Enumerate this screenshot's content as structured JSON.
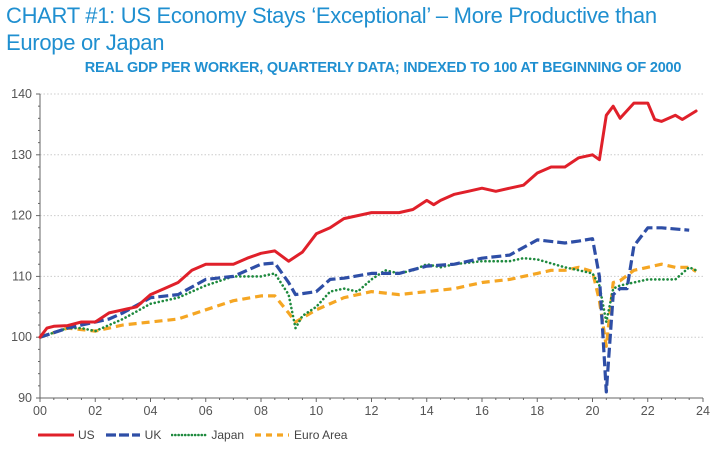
{
  "title": "CHART #1: US Economy Stays ‘Exceptional’ – More Productive than Europe or Japan",
  "subtitle": "REAL GDP PER WORKER, QUARTERLY DATA; INDEXED TO 100 AT BEGINNING OF 2000",
  "chart_data": {
    "type": "line",
    "title": "CHART #1: US Economy Stays ‘Exceptional’ – More Productive than Europe or Japan",
    "subtitle": "REAL GDP PER WORKER, QUARTERLY DATA; INDEXED TO 100 AT BEGINNING OF 2000",
    "xlabel": "",
    "ylabel": "",
    "xlim": [
      2000,
      2024
    ],
    "ylim": [
      90,
      140
    ],
    "x_ticks": [
      2000,
      2002,
      2004,
      2006,
      2008,
      2010,
      2012,
      2014,
      2016,
      2018,
      2020,
      2022,
      2024
    ],
    "x_tick_labels": [
      "00",
      "02",
      "04",
      "06",
      "08",
      "10",
      "12",
      "14",
      "16",
      "18",
      "20",
      "22",
      "24"
    ],
    "y_ticks": [
      90,
      100,
      110,
      120,
      130,
      140
    ],
    "y_tick_labels": [
      "90",
      "100",
      "110",
      "120",
      "130",
      "140"
    ],
    "grid": "horizontal dotted",
    "legend_position": "bottom-left",
    "series": [
      {
        "name": "US",
        "color": "#e0202a",
        "style": "solid",
        "x": [
          2000,
          2000.25,
          2000.5,
          2001,
          2001.5,
          2002,
          2002.5,
          2003,
          2003.5,
          2004,
          2004.5,
          2005,
          2005.5,
          2006,
          2006.5,
          2007,
          2007.5,
          2008,
          2008.5,
          2009,
          2009.5,
          2010,
          2010.5,
          2011,
          2011.5,
          2012,
          2012.5,
          2013,
          2013.5,
          2014,
          2014.25,
          2014.5,
          2015,
          2015.5,
          2016,
          2016.5,
          2017,
          2017.5,
          2018,
          2018.5,
          2019,
          2019.5,
          2020,
          2020.25,
          2020.5,
          2020.75,
          2021,
          2021.5,
          2022,
          2022.25,
          2022.5,
          2023,
          2023.25,
          2023.75
        ],
        "values": [
          100,
          101.5,
          101.8,
          101.9,
          102.5,
          102.5,
          104,
          104.5,
          105,
          107,
          108,
          109,
          111,
          112,
          112,
          112,
          113,
          113.8,
          114.2,
          112.5,
          114,
          117,
          118,
          119.5,
          120,
          120.5,
          120.5,
          120.5,
          121,
          122.5,
          121.8,
          122.5,
          123.5,
          124,
          124.5,
          124,
          124.5,
          125,
          127,
          128,
          128,
          129.5,
          130,
          129.2,
          136.5,
          138,
          136,
          138.5,
          138.5,
          135.8,
          135.5,
          136.5,
          135.8,
          137.2
        ]
      },
      {
        "name": "UK",
        "color": "#2e4ea6",
        "style": "dashed",
        "x": [
          2000,
          2001,
          2002,
          2002.5,
          2003,
          2004,
          2005,
          2006,
          2007,
          2008,
          2008.5,
          2009,
          2009.25,
          2010,
          2010.5,
          2011,
          2012,
          2013,
          2014,
          2015,
          2016,
          2017,
          2018,
          2019,
          2019.5,
          2020,
          2020.25,
          2020.5,
          2020.75,
          2021,
          2021.25,
          2021.5,
          2022,
          2022.5,
          2023.5
        ],
        "values": [
          100,
          101.5,
          102.5,
          103,
          104,
          106.5,
          107,
          109.5,
          110,
          112,
          112.2,
          109,
          107,
          107.5,
          109.5,
          109.7,
          110.5,
          110.5,
          111.7,
          112,
          113,
          113.5,
          116,
          115.5,
          115.8,
          116.2,
          110,
          91,
          107,
          108,
          108,
          115,
          118,
          118,
          117.6
        ]
      },
      {
        "name": "Japan",
        "color": "#1e8a3e",
        "style": "dotted",
        "x": [
          2000,
          2001,
          2001.5,
          2002,
          2003,
          2004,
          2005,
          2006,
          2007,
          2008,
          2008.5,
          2009,
          2009.25,
          2009.5,
          2010,
          2010.5,
          2011,
          2011.5,
          2012,
          2012.5,
          2013,
          2013.5,
          2014,
          2014.5,
          2015,
          2016,
          2017,
          2017.5,
          2018,
          2019,
          2019.5,
          2020,
          2020.25,
          2020.5,
          2020.75,
          2021,
          2021.5,
          2022,
          2023,
          2023.5,
          2023.75
        ],
        "values": [
          100,
          101.5,
          101.5,
          101,
          103,
          105.5,
          106.5,
          108.5,
          110,
          110,
          110.5,
          107,
          101.5,
          103.5,
          105,
          107.5,
          108,
          107.5,
          109.5,
          111,
          110.5,
          111,
          112,
          111.5,
          112,
          112.5,
          112.5,
          113,
          112.8,
          111.5,
          111,
          110.5,
          108.5,
          102.5,
          108,
          108.5,
          109,
          109.5,
          109.5,
          111.5,
          111
        ]
      },
      {
        "name": "Euro Area",
        "color": "#f5a623",
        "style": "dashed",
        "x": [
          2000,
          2001,
          2002,
          2003,
          2004,
          2005,
          2006,
          2007,
          2008,
          2008.5,
          2009,
          2009.25,
          2010,
          2011,
          2012,
          2013,
          2014,
          2015,
          2016,
          2017,
          2018,
          2018.5,
          2019,
          2019.5,
          2020,
          2020.25,
          2020.5,
          2020.75,
          2021,
          2021.5,
          2022,
          2022.5,
          2023,
          2023.5,
          2023.75
        ],
        "values": [
          100,
          101.5,
          101,
          102,
          102.5,
          103,
          104.5,
          106,
          106.8,
          106.8,
          104,
          102.5,
          104.5,
          106.5,
          107.5,
          107,
          107.5,
          108,
          109,
          109.5,
          110.5,
          111,
          111,
          111.5,
          110.8,
          106,
          98.5,
          109,
          109.3,
          111,
          111.5,
          112,
          111.5,
          111.5,
          110.8
        ]
      }
    ]
  }
}
